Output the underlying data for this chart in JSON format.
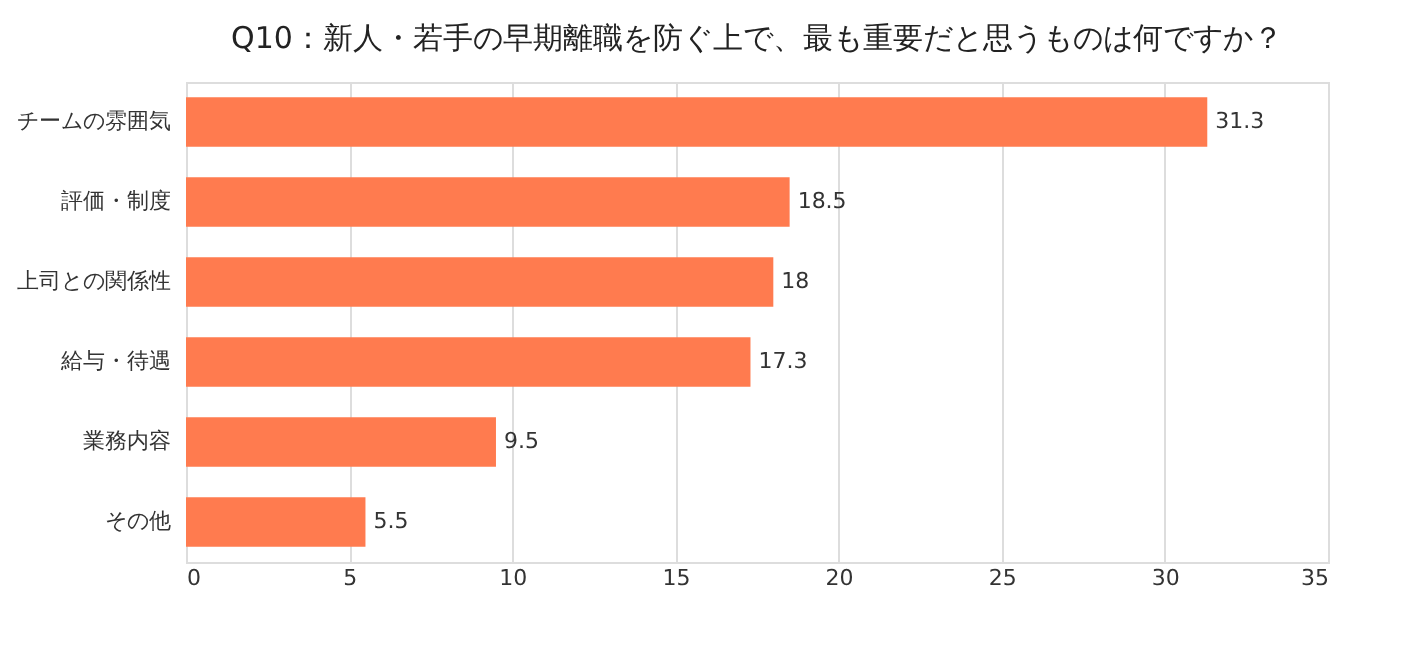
{
  "chart_data": {
    "type": "bar",
    "orientation": "horizontal",
    "title": "Q10：新人・若手の早期離職を防ぐ上で、最も重要だと思うものは何ですか？",
    "categories": [
      "チームの雰囲気",
      "評価・制度",
      "上司との関係性",
      "給与・待遇",
      "業務内容",
      "その他"
    ],
    "values": [
      31.3,
      18.5,
      18,
      17.3,
      9.5,
      5.5
    ],
    "color": "#ff7b4f",
    "xlim": [
      0,
      35
    ],
    "xticks": [
      0,
      5,
      10,
      15,
      20,
      25,
      30,
      35
    ],
    "grid": "x",
    "data_labels": true
  }
}
